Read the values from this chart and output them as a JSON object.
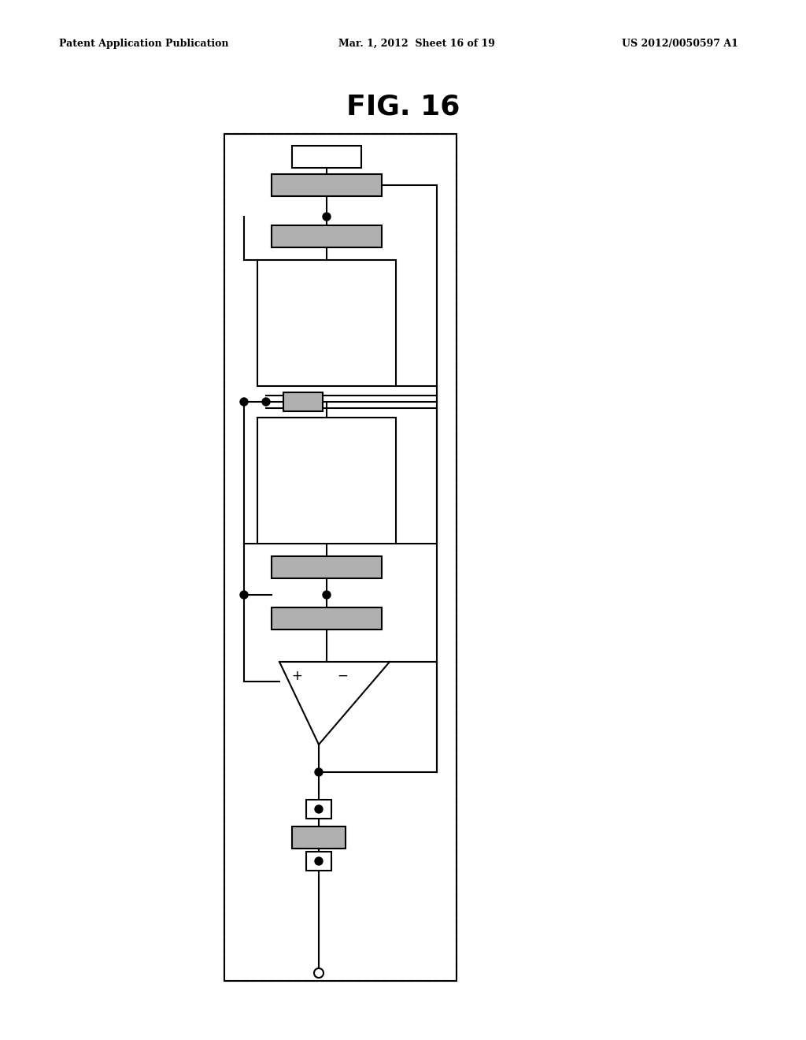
{
  "title": "FIG. 16",
  "header_left": "Patent Application Publication",
  "header_mid": "Mar. 1, 2012  Sheet 16 of 19",
  "header_right": "US 2012/0050597 A1",
  "bg_color": "#ffffff",
  "figsize": [
    10.24,
    13.2
  ],
  "dpi": 100
}
